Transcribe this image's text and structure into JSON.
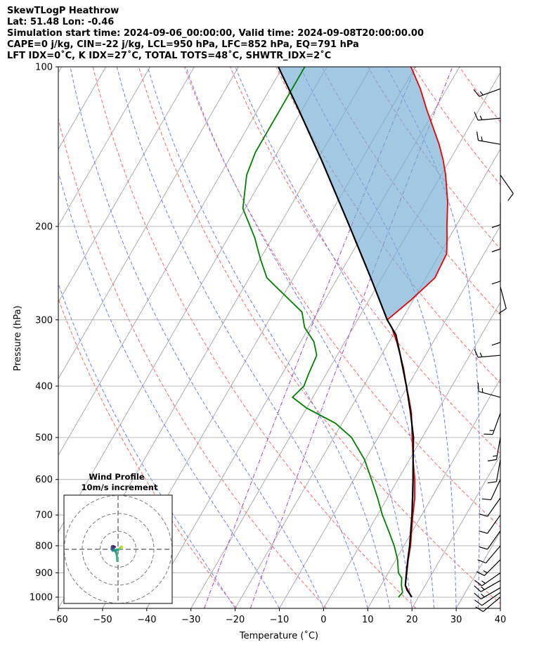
{
  "header": {
    "line1": "SkewTLogP Heathrow",
    "line2": "Lat: 51.48   Lon: -0.46",
    "line3": "Simulation start time: 2024-09-06_00:00:00, Valid time: 2024-09-08T20:00:00.00",
    "line4": "CAPE=0 j/kg, CIN=-22 j/kg, LCL=950 hPa, LFC=852 hPa, EQ=791 hPa",
    "line5": "LFT IDX=0˚C, K IDX=27˚C, TOTAL TOTS=48˚C, SHWTR_IDX=2˚C"
  },
  "inset": {
    "title_line1": "Wind Profile",
    "title_line2": "10m/s increment"
  },
  "chart_data": {
    "type": "line",
    "subtype": "skew-T log-P",
    "xlabel": "Temperature (˚C)",
    "ylabel": "Pressure (hPa)",
    "xlim": [
      -60,
      40
    ],
    "ylim": [
      1050,
      100
    ],
    "y_scale": "log",
    "x_ticks": [
      -60,
      -50,
      -40,
      -30,
      -20,
      -10,
      0,
      10,
      20,
      30,
      40
    ],
    "x_tick_labels": [
      "−60",
      "−50",
      "−40",
      "−30",
      "−20",
      "−10",
      "0",
      "10",
      "20",
      "30",
      "40"
    ],
    "y_ticks": [
      1000,
      900,
      800,
      700,
      600,
      500,
      400,
      300,
      200,
      100
    ],
    "grid": true,
    "colors": {
      "temperature": "#ee0000",
      "dewpoint": "#008000",
      "parcel": "#000000",
      "cin_shading": "#7bb0d6",
      "dry_adiabats": "#ff6666",
      "moist_adiabats": "#6a7bff",
      "mixing_ratio": "#9a44cc",
      "isotherms": "#999999"
    },
    "series": [
      {
        "role": "temperature",
        "points": [
          [
            1000,
            18.5
          ],
          [
            950,
            15.5
          ],
          [
            900,
            14.2
          ],
          [
            850,
            12.8
          ],
          [
            800,
            11.5
          ],
          [
            750,
            9.8
          ],
          [
            700,
            8.0
          ],
          [
            650,
            6.2
          ],
          [
            600,
            3.8
          ],
          [
            550,
            0.8
          ],
          [
            500,
            -2.3
          ],
          [
            450,
            -5.6
          ],
          [
            420,
            -8.3
          ],
          [
            400,
            -10.3
          ],
          [
            370,
            -13.3
          ],
          [
            350,
            -15.7
          ],
          [
            330,
            -18.3
          ],
          [
            310,
            -21.3
          ],
          [
            300,
            -23.3
          ],
          [
            275,
            -20.5
          ],
          [
            250,
            -18.0
          ],
          [
            225,
            -18.5
          ],
          [
            210,
            -20.5
          ],
          [
            200,
            -22.0
          ],
          [
            180,
            -25.0
          ],
          [
            160,
            -29.0
          ],
          [
            150,
            -31.5
          ],
          [
            140,
            -34.5
          ],
          [
            120,
            -42.0
          ],
          [
            110,
            -46.0
          ],
          [
            100,
            -51.0
          ]
        ]
      },
      {
        "role": "dewpoint",
        "points": [
          [
            1000,
            15.5
          ],
          [
            980,
            15.8
          ],
          [
            950,
            14.6
          ],
          [
            920,
            13.7
          ],
          [
            900,
            12.3
          ],
          [
            850,
            10.4
          ],
          [
            800,
            7.8
          ],
          [
            750,
            4.6
          ],
          [
            700,
            1.1
          ],
          [
            650,
            -2.2
          ],
          [
            600,
            -6.0
          ],
          [
            550,
            -10.2
          ],
          [
            500,
            -16.0
          ],
          [
            470,
            -21.5
          ],
          [
            440,
            -30.0
          ],
          [
            420,
            -34.6
          ],
          [
            400,
            -33.5
          ],
          [
            380,
            -34.0
          ],
          [
            350,
            -34.6
          ],
          [
            330,
            -37.0
          ],
          [
            310,
            -41.0
          ],
          [
            290,
            -43.6
          ],
          [
            250,
            -56.0
          ],
          [
            230,
            -60.0
          ],
          [
            210,
            -64.0
          ],
          [
            200,
            -66.5
          ],
          [
            185,
            -70.5
          ],
          [
            160,
            -74.0
          ],
          [
            145,
            -75.0
          ],
          [
            120,
            -75.0
          ],
          [
            100,
            -75.0
          ]
        ]
      },
      {
        "role": "parcel",
        "points": [
          [
            1000,
            18.5
          ],
          [
            970,
            16.5
          ],
          [
            950,
            15.5
          ],
          [
            900,
            14.1
          ],
          [
            850,
            12.7
          ],
          [
            800,
            11.3
          ],
          [
            750,
            9.6
          ],
          [
            700,
            7.8
          ],
          [
            650,
            5.7
          ],
          [
            600,
            3.4
          ],
          [
            550,
            0.8
          ],
          [
            500,
            -2.0
          ],
          [
            450,
            -5.8
          ],
          [
            400,
            -10.3
          ],
          [
            350,
            -15.7
          ],
          [
            320,
            -19.4
          ],
          [
            300,
            -23.3
          ],
          [
            250,
            -32.5
          ],
          [
            200,
            -44.0
          ],
          [
            150,
            -59.0
          ],
          [
            120,
            -71.0
          ],
          [
            100,
            -81.0
          ]
        ]
      }
    ],
    "isotherms_c": [
      -180,
      -170,
      -160,
      -150,
      -140,
      -130,
      -120,
      -110,
      -100,
      -90,
      -80,
      -70,
      -60,
      -50,
      -40,
      -30,
      -20,
      -10,
      0,
      10,
      20,
      30,
      40
    ],
    "dry_adiabats_theta_k": [
      250,
      270,
      290,
      310,
      330,
      350,
      370,
      390,
      410,
      430,
      450,
      470
    ],
    "moist_adiabats_c": [
      -20,
      -10,
      0,
      10,
      15,
      20,
      25,
      30,
      35
    ],
    "mixing_ratio_lines": [
      0.4,
      1.0
    ],
    "wind_barbs": [
      {
        "p": 1000,
        "dir": 230,
        "spd": 10
      },
      {
        "p": 980,
        "dir": 235,
        "spd": 12
      },
      {
        "p": 960,
        "dir": 240,
        "spd": 14
      },
      {
        "p": 930,
        "dir": 240,
        "spd": 15
      },
      {
        "p": 900,
        "dir": 235,
        "spd": 15
      },
      {
        "p": 850,
        "dir": 225,
        "spd": 13
      },
      {
        "p": 800,
        "dir": 220,
        "spd": 12
      },
      {
        "p": 750,
        "dir": 215,
        "spd": 11
      },
      {
        "p": 700,
        "dir": 215,
        "spd": 10
      },
      {
        "p": 650,
        "dir": 215,
        "spd": 10
      },
      {
        "p": 600,
        "dir": 205,
        "spd": 10
      },
      {
        "p": 550,
        "dir": 190,
        "spd": 12
      },
      {
        "p": 500,
        "dir": 190,
        "spd": 15
      },
      {
        "p": 450,
        "dir": 200,
        "spd": 15
      },
      {
        "p": 420,
        "dir": 285,
        "spd": 15
      },
      {
        "p": 350,
        "dir": 265,
        "spd": 15
      },
      {
        "p": 300,
        "dir": 180,
        "spd": 10
      },
      {
        "p": 260,
        "dir": 165,
        "spd": 10
      },
      {
        "p": 230,
        "dir": 180,
        "spd": 10
      },
      {
        "p": 200,
        "dir": 180,
        "spd": 10
      },
      {
        "p": 180,
        "dir": 180,
        "spd": 10
      },
      {
        "p": 160,
        "dir": 145,
        "spd": 10
      },
      {
        "p": 140,
        "dir": 280,
        "spd": 15
      },
      {
        "p": 125,
        "dir": 265,
        "spd": 15
      },
      {
        "p": 110,
        "dir": 250,
        "spd": 15
      }
    ],
    "hodograph": {
      "rings_ms": [
        10,
        20,
        30
      ],
      "points_uv": [
        [
          -0.5,
          -6.5
        ],
        [
          -0.5,
          -5.0
        ],
        [
          -0.7,
          -3.2
        ],
        [
          -1.2,
          -1.5
        ],
        [
          -2.3,
          -0.3
        ],
        [
          -3.0,
          0.0
        ],
        [
          -3.4,
          0.5
        ],
        [
          -2.6,
          0.7
        ],
        [
          -2.0,
          1.5
        ],
        [
          -1.8,
          1.3
        ],
        [
          -2.8,
          1.8
        ],
        [
          -3.4,
          1.6
        ],
        [
          -3.5,
          0.0
        ],
        [
          -3.0,
          -0.8
        ],
        [
          -1.8,
          -0.5
        ],
        [
          0.8,
          0.0
        ],
        [
          1.2,
          0.8
        ],
        [
          1.8,
          1.6
        ],
        [
          2.4,
          1.2
        ]
      ]
    }
  }
}
